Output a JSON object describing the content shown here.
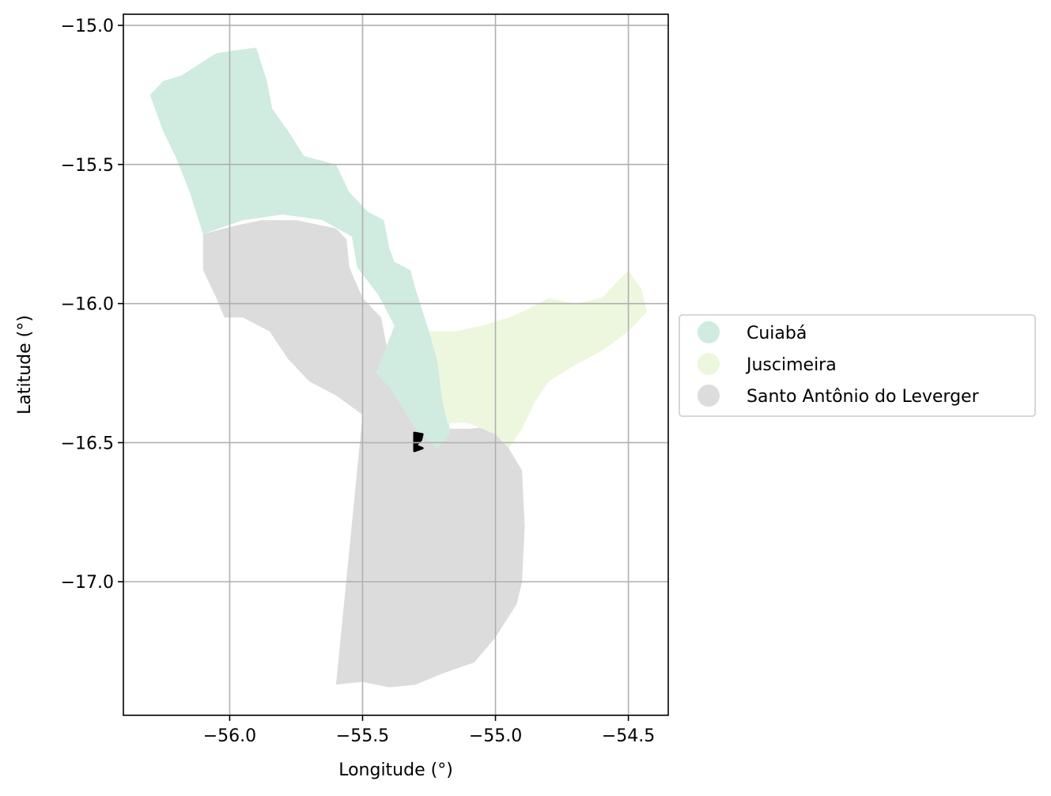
{
  "chart_data": {
    "type": "map",
    "xlabel": "Longitude (°)",
    "ylabel": "Latitude (°)",
    "xlim": [
      -56.4,
      -54.35
    ],
    "ylim": [
      -17.48,
      -14.96
    ],
    "x_ticks": [
      -56.0,
      -55.5,
      -55.0,
      -54.5
    ],
    "x_tick_labels": [
      "−56.0",
      "−55.5",
      "−55.0",
      "−54.5"
    ],
    "y_ticks": [
      -15.0,
      -15.5,
      -16.0,
      -16.5,
      -17.0
    ],
    "y_tick_labels": [
      "−15.0",
      "−15.5",
      "−16.0",
      "−16.5",
      "−17.0"
    ],
    "grid": true,
    "legend_position": "right",
    "legend": [
      {
        "label": "Cuiabá",
        "color": "#d0ebdf"
      },
      {
        "label": "Juscimeira",
        "color": "#edf7dd"
      },
      {
        "label": "Santo Antônio do Leverger",
        "color": "#dcdcdc"
      }
    ],
    "regions": [
      {
        "name": "Santo Antônio do Leverger",
        "color": "#dcdcdc",
        "outline": [
          [
            -56.1,
            -15.75
          ],
          [
            -55.98,
            -15.72
          ],
          [
            -55.88,
            -15.7
          ],
          [
            -55.75,
            -15.7
          ],
          [
            -55.6,
            -15.73
          ],
          [
            -55.56,
            -15.77
          ],
          [
            -55.55,
            -15.87
          ],
          [
            -55.5,
            -15.98
          ],
          [
            -55.43,
            -16.05
          ],
          [
            -55.4,
            -16.2
          ],
          [
            -55.3,
            -16.28
          ],
          [
            -55.28,
            -16.45
          ],
          [
            -55.1,
            -16.45
          ],
          [
            -54.98,
            -16.44
          ],
          [
            -54.95,
            -16.52
          ],
          [
            -54.9,
            -16.6
          ],
          [
            -54.89,
            -16.8
          ],
          [
            -54.9,
            -17.0
          ],
          [
            -54.92,
            -17.08
          ],
          [
            -55.0,
            -17.2
          ],
          [
            -55.08,
            -17.29
          ],
          [
            -55.2,
            -17.33
          ],
          [
            -55.3,
            -17.37
          ],
          [
            -55.4,
            -17.38
          ],
          [
            -55.5,
            -17.36
          ],
          [
            -55.6,
            -17.37
          ],
          [
            -55.5,
            -16.4
          ],
          [
            -55.6,
            -16.33
          ],
          [
            -55.7,
            -16.28
          ],
          [
            -55.78,
            -16.2
          ],
          [
            -55.85,
            -16.1
          ],
          [
            -55.95,
            -16.05
          ],
          [
            -56.02,
            -16.05
          ],
          [
            -56.05,
            -15.98
          ],
          [
            -56.1,
            -15.88
          ]
        ]
      },
      {
        "name": "Cuiabá",
        "color": "#d0ebdf",
        "outline": [
          [
            -56.3,
            -15.25
          ],
          [
            -56.25,
            -15.2
          ],
          [
            -56.18,
            -15.18
          ],
          [
            -56.1,
            -15.13
          ],
          [
            -56.05,
            -15.1
          ],
          [
            -55.98,
            -15.09
          ],
          [
            -55.9,
            -15.08
          ],
          [
            -55.86,
            -15.2
          ],
          [
            -55.84,
            -15.3
          ],
          [
            -55.78,
            -15.38
          ],
          [
            -55.72,
            -15.47
          ],
          [
            -55.6,
            -15.5
          ],
          [
            -55.55,
            -15.6
          ],
          [
            -55.48,
            -15.67
          ],
          [
            -55.42,
            -15.7
          ],
          [
            -55.4,
            -15.8
          ],
          [
            -55.38,
            -15.85
          ],
          [
            -55.32,
            -15.88
          ],
          [
            -55.3,
            -15.95
          ],
          [
            -55.25,
            -16.1
          ],
          [
            -55.22,
            -16.2
          ],
          [
            -55.2,
            -16.3
          ],
          [
            -55.18,
            -16.4
          ],
          [
            -55.17,
            -16.47
          ],
          [
            -55.22,
            -16.52
          ],
          [
            -55.3,
            -16.45
          ],
          [
            -55.4,
            -16.3
          ],
          [
            -55.45,
            -16.25
          ],
          [
            -55.38,
            -16.08
          ],
          [
            -55.44,
            -15.97
          ],
          [
            -55.52,
            -15.87
          ],
          [
            -55.54,
            -15.76
          ],
          [
            -55.65,
            -15.7
          ],
          [
            -55.8,
            -15.68
          ],
          [
            -55.95,
            -15.7
          ],
          [
            -56.1,
            -15.75
          ],
          [
            -56.15,
            -15.6
          ],
          [
            -56.2,
            -15.48
          ],
          [
            -56.25,
            -15.38
          ]
        ]
      },
      {
        "name": "Juscimeira",
        "color": "#edf7dd",
        "outline": [
          [
            -55.25,
            -16.1
          ],
          [
            -55.15,
            -16.1
          ],
          [
            -55.05,
            -16.08
          ],
          [
            -54.95,
            -16.05
          ],
          [
            -54.9,
            -16.03
          ],
          [
            -54.8,
            -15.98
          ],
          [
            -54.7,
            -16.0
          ],
          [
            -54.6,
            -15.98
          ],
          [
            -54.5,
            -15.88
          ],
          [
            -54.45,
            -15.95
          ],
          [
            -54.43,
            -16.03
          ],
          [
            -54.5,
            -16.1
          ],
          [
            -54.6,
            -16.17
          ],
          [
            -54.7,
            -16.22
          ],
          [
            -54.8,
            -16.28
          ],
          [
            -54.85,
            -16.35
          ],
          [
            -54.9,
            -16.45
          ],
          [
            -54.95,
            -16.52
          ],
          [
            -55.0,
            -16.47
          ],
          [
            -55.1,
            -16.43
          ],
          [
            -55.18,
            -16.43
          ],
          [
            -55.2,
            -16.35
          ],
          [
            -55.22,
            -16.2
          ]
        ]
      }
    ],
    "marker_area": {
      "color": "#000000",
      "points": [
        [
          -55.305,
          -16.465
        ],
        [
          -55.275,
          -16.47
        ],
        [
          -55.28,
          -16.49
        ],
        [
          -55.3,
          -16.51
        ],
        [
          -55.275,
          -16.52
        ],
        [
          -55.305,
          -16.53
        ]
      ]
    }
  }
}
